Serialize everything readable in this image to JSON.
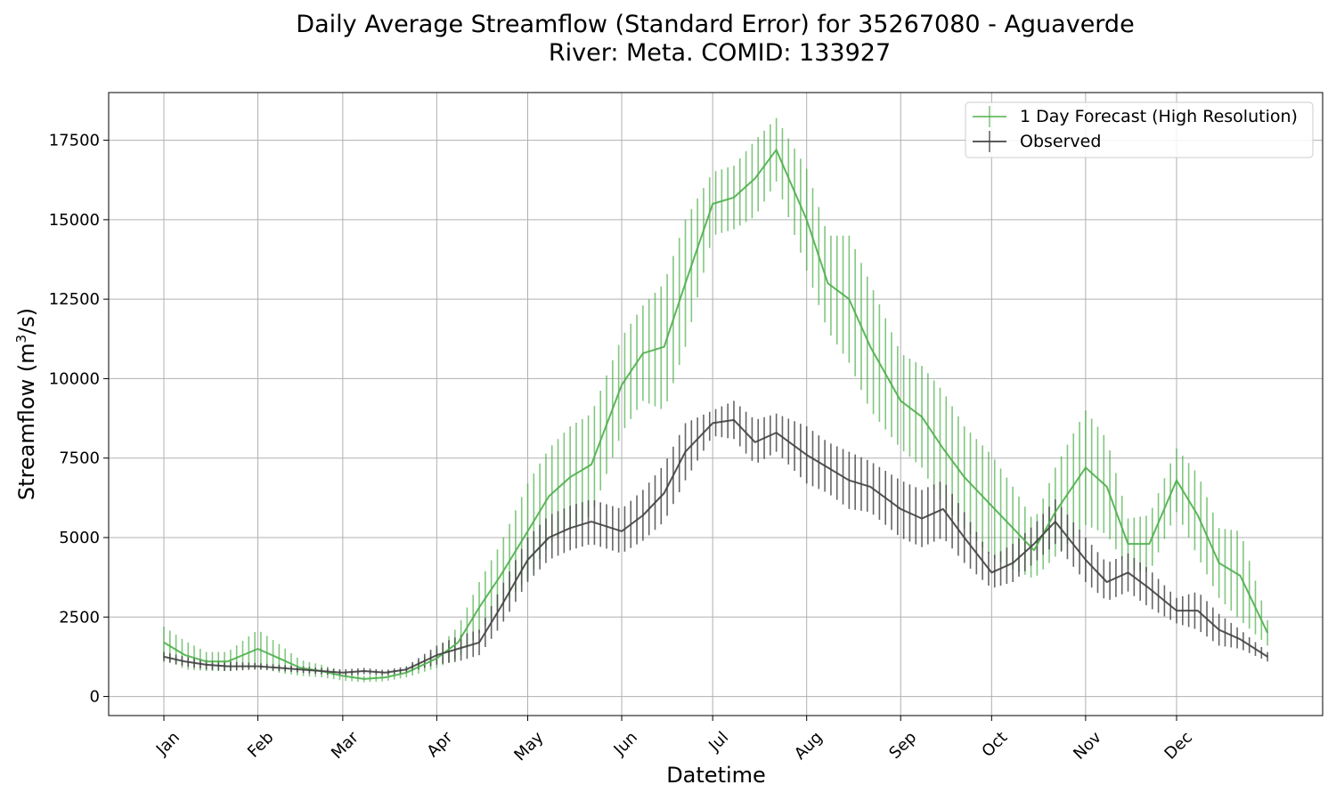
{
  "chart_data": {
    "type": "line",
    "title_line1": "Daily Average Streamflow (Standard Error) for 35267080 - Aguaverde",
    "title_line2": "River: Meta. COMID: 133927",
    "xlabel": "Datetime",
    "ylabel_main": "Streamflow (m",
    "ylabel_sup": "3",
    "ylabel_end": "/s)",
    "x_ticks": [
      "Jan",
      "Feb",
      "Mar",
      "Apr",
      "May",
      "Jun",
      "Jul",
      "Aug",
      "Sep",
      "Oct",
      "Nov",
      "Dec"
    ],
    "y_ticks": [
      "0",
      "2500",
      "5000",
      "7500",
      "10000",
      "12500",
      "15000",
      "17500"
    ],
    "ylim": [
      -600,
      19000
    ],
    "grid": true,
    "legend_position": "top-right",
    "series": [
      {
        "name": "1 Day Forecast (High Resolution)",
        "color": "#4daf4a",
        "x": [
          "Jan 1",
          "Jan 8",
          "Jan 15",
          "Jan 22",
          "Feb 1",
          "Feb 8",
          "Feb 15",
          "Feb 22",
          "Mar 1",
          "Mar 8",
          "Mar 15",
          "Mar 22",
          "Apr 1",
          "Apr 8",
          "Apr 15",
          "Apr 22",
          "May 1",
          "May 8",
          "May 15",
          "May 22",
          "Jun 1",
          "Jun 8",
          "Jun 15",
          "Jun 22",
          "Jul 1",
          "Jul 8",
          "Jul 15",
          "Jul 22",
          "Aug 1",
          "Aug 8",
          "Aug 15",
          "Aug 22",
          "Sep 1",
          "Sep 8",
          "Sep 15",
          "Sep 22",
          "Oct 1",
          "Oct 8",
          "Oct 15",
          "Oct 22",
          "Nov 1",
          "Nov 8",
          "Nov 15",
          "Nov 22",
          "Dec 1",
          "Dec 8",
          "Dec 15",
          "Dec 22",
          "Dec 31"
        ],
        "values": [
          1700,
          1300,
          1100,
          1100,
          1500,
          1200,
          900,
          800,
          650,
          550,
          600,
          750,
          1200,
          1700,
          2800,
          3800,
          5200,
          6300,
          6900,
          7300,
          9800,
          10800,
          11000,
          13000,
          15500,
          15700,
          16300,
          17200,
          15000,
          13000,
          12500,
          11000,
          9300,
          8800,
          7800,
          6900,
          6000,
          5300,
          4600,
          5800,
          7200,
          6600,
          4800,
          4800,
          6800,
          5700,
          4200,
          3800,
          2000
        ],
        "errors": [
          500,
          450,
          300,
          300,
          600,
          450,
          250,
          200,
          150,
          100,
          120,
          150,
          300,
          500,
          800,
          1000,
          1500,
          1500,
          1600,
          1600,
          1500,
          1500,
          2000,
          2000,
          1000,
          1000,
          1200,
          1000,
          1600,
          1500,
          2000,
          2000,
          1500,
          1600,
          1800,
          1600,
          1600,
          1300,
          900,
          1400,
          1800,
          1500,
          800,
          900,
          1000,
          1300,
          1100,
          1400,
          400
        ],
        "error_width": 14
      },
      {
        "name": "Observed",
        "color": "#404040",
        "x": [
          "Jan 1",
          "Jan 8",
          "Jan 15",
          "Jan 22",
          "Feb 1",
          "Feb 8",
          "Feb 15",
          "Feb 22",
          "Mar 1",
          "Mar 8",
          "Mar 15",
          "Mar 22",
          "Apr 1",
          "Apr 8",
          "Apr 15",
          "Apr 22",
          "May 1",
          "May 8",
          "May 15",
          "May 22",
          "Jun 1",
          "Jun 8",
          "Jun 15",
          "Jun 22",
          "Jul 1",
          "Jul 8",
          "Jul 15",
          "Jul 22",
          "Aug 1",
          "Aug 8",
          "Aug 15",
          "Aug 22",
          "Sep 1",
          "Sep 8",
          "Sep 15",
          "Sep 22",
          "Oct 1",
          "Oct 8",
          "Oct 15",
          "Oct 22",
          "Nov 1",
          "Nov 8",
          "Nov 15",
          "Nov 22",
          "Dec 1",
          "Dec 8",
          "Dec 15",
          "Dec 22",
          "Dec 31"
        ],
        "values": [
          1250,
          1100,
          1000,
          950,
          950,
          900,
          850,
          800,
          750,
          800,
          750,
          850,
          1300,
          1500,
          1700,
          2800,
          4300,
          5000,
          5300,
          5500,
          5200,
          5700,
          6400,
          7700,
          8600,
          8700,
          8000,
          8300,
          7600,
          7200,
          6800,
          6600,
          5900,
          5600,
          5900,
          5000,
          3900,
          4200,
          4800,
          5500,
          4300,
          3600,
          3900,
          3400,
          2700,
          2700,
          2100,
          1800,
          1250
        ],
        "errors": [
          150,
          150,
          150,
          150,
          100,
          100,
          100,
          100,
          100,
          100,
          80,
          100,
          300,
          400,
          400,
          600,
          700,
          700,
          700,
          700,
          700,
          800,
          900,
          900,
          400,
          600,
          700,
          600,
          900,
          800,
          900,
          800,
          900,
          900,
          900,
          800,
          500,
          600,
          600,
          700,
          700,
          600,
          600,
          600,
          400,
          600,
          500,
          300,
          150
        ],
        "error_width": 10
      }
    ]
  }
}
